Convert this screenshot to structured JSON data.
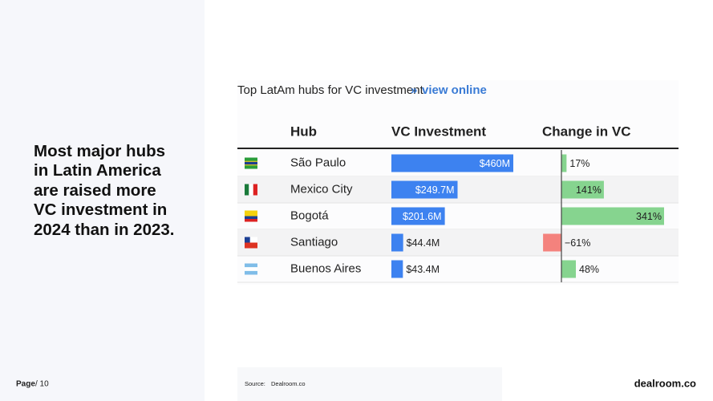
{
  "headline": "Most major hubs in Latin America are raised more VC investment in 2024 than in 2023.",
  "footer": {
    "page_label": "Page",
    "page_total": "/ 10"
  },
  "table": {
    "title": "Top LatAm hubs for VC investment",
    "link_marker": "»",
    "link": "view online",
    "columns": [
      "Hub",
      "VC Investment",
      "Change in VC"
    ],
    "rows": [
      {
        "hub": "São Paulo",
        "investment": 460,
        "investment_label": "$460M",
        "change": 17,
        "change_label": "17%"
      },
      {
        "hub": "Mexico City",
        "investment": 249.7,
        "investment_label": "$249.7M",
        "change": 141,
        "change_label": "141%"
      },
      {
        "hub": "Bogotá",
        "investment": 201.6,
        "investment_label": "$201.6M",
        "change": 341,
        "change_label": "341%"
      },
      {
        "hub": "Santiago",
        "investment": 44.4,
        "investment_label": "$44.4M",
        "change": -61,
        "change_label": "−61%"
      },
      {
        "hub": "Buenos Aires",
        "investment": 43.4,
        "investment_label": "$43.4M",
        "change": 48,
        "change_label": "48%"
      }
    ]
  },
  "source": {
    "label": "Source:",
    "text": "Dealroom.co"
  },
  "logo": "dealroom.co"
}
